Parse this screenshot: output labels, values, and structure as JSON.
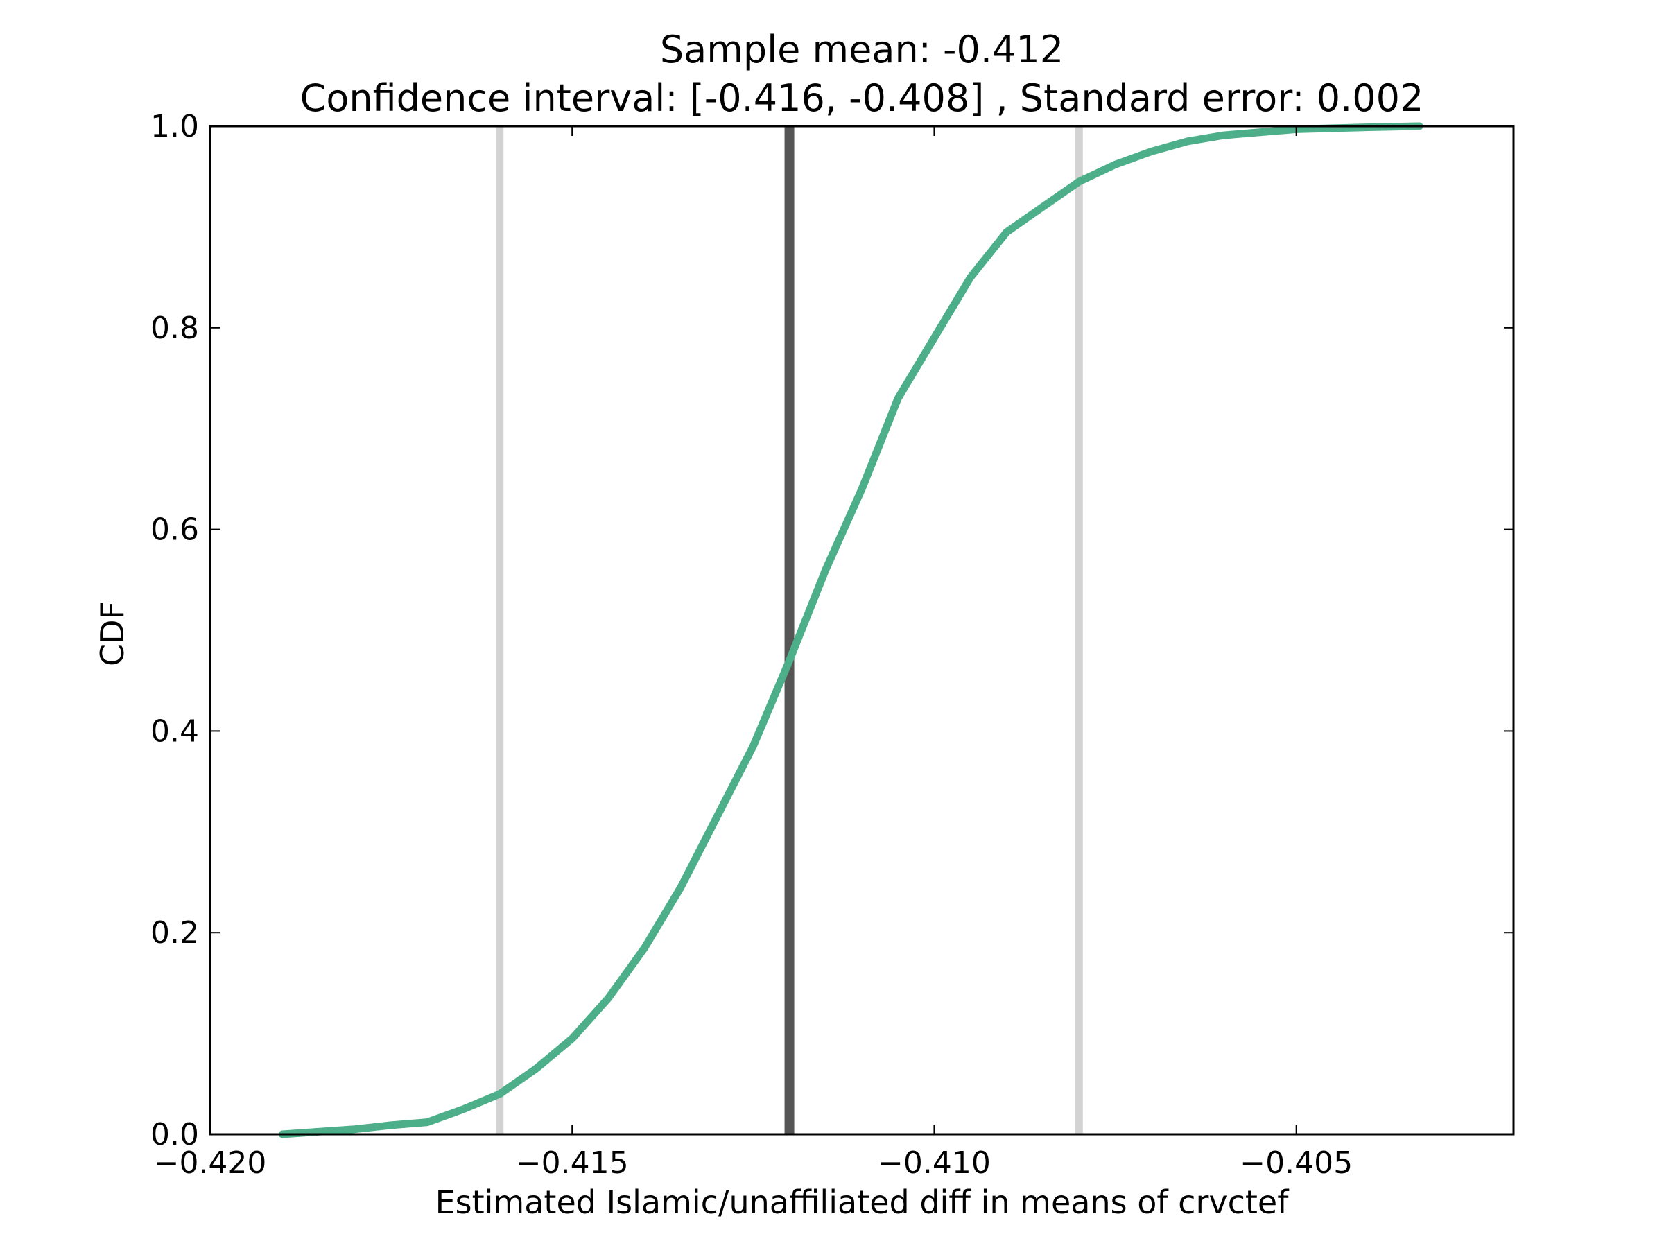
{
  "chart_data": {
    "type": "line",
    "title_line1": "Sample mean: -0.412",
    "title_line2": "Confidence interval: [-0.416, -0.408] , Standard error: 0.002",
    "xlabel": "Estimated Islamic/unaffiliated diff in means of crvctef",
    "ylabel": "CDF",
    "xlim": [
      -0.42,
      -0.402
    ],
    "ylim": [
      0.0,
      1.0
    ],
    "grid": false,
    "x_ticks": [
      -0.42,
      -0.415,
      -0.41,
      -0.405
    ],
    "x_tick_labels": [
      "−0.420",
      "−0.415",
      "−0.410",
      "−0.405"
    ],
    "y_ticks": [
      0.0,
      0.2,
      0.4,
      0.6,
      0.8,
      1.0
    ],
    "y_tick_labels": [
      "0.0",
      "0.2",
      "0.4",
      "0.6",
      "0.8",
      "1.0"
    ],
    "vertical_lines": [
      {
        "name": "ci-lower",
        "x": -0.416,
        "color": "#d3d3d3"
      },
      {
        "name": "sample-mean",
        "x": -0.412,
        "color": "#555555"
      },
      {
        "name": "ci-upper",
        "x": -0.408,
        "color": "#d3d3d3"
      }
    ],
    "series": [
      {
        "color": "#4daf8a",
        "x": [
          -0.419,
          -0.418,
          -0.4175,
          -0.417,
          -0.4165,
          -0.416,
          -0.4155,
          -0.415,
          -0.4145,
          -0.414,
          -0.4135,
          -0.413,
          -0.4125,
          -0.412,
          -0.4115,
          -0.411,
          -0.4105,
          -0.41,
          -0.4095,
          -0.409,
          -0.4085,
          -0.408,
          -0.4075,
          -0.407,
          -0.4065,
          -0.406,
          -0.405,
          -0.404,
          -0.4033
        ],
        "y": [
          0.0,
          0.005,
          0.009,
          0.012,
          0.025,
          0.04,
          0.065,
          0.095,
          0.135,
          0.185,
          0.245,
          0.315,
          0.385,
          0.47,
          0.56,
          0.64,
          0.73,
          0.79,
          0.85,
          0.895,
          0.92,
          0.945,
          0.962,
          0.975,
          0.985,
          0.991,
          0.997,
          0.999,
          1.0
        ]
      }
    ]
  }
}
